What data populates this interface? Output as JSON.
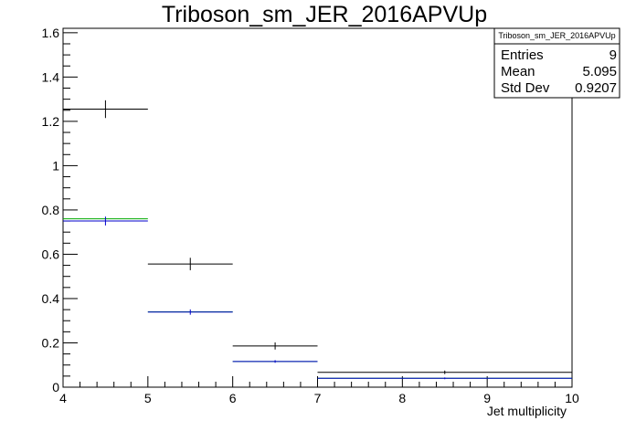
{
  "chart_data": {
    "type": "histogram",
    "title": "Triboson_sm_JER_2016APVUp",
    "xlabel": "Jet multiplicity",
    "ylabel": "",
    "xlim": [
      4,
      10
    ],
    "ylim": [
      0,
      1.62
    ],
    "x_ticks": [
      "4",
      "5",
      "6",
      "7",
      "8",
      "9",
      "10"
    ],
    "y_ticks": [
      "0",
      "0.2",
      "0.4",
      "0.6",
      "0.8",
      "1",
      "1.2",
      "1.4",
      "1.6"
    ],
    "stats_box": {
      "title": "Triboson_sm_JER_2016APVUp",
      "rows": [
        {
          "label": "Entries",
          "value": "9"
        },
        {
          "label": "Mean",
          "value": "5.095"
        },
        {
          "label": "Std Dev",
          "value": "0.9207"
        }
      ]
    },
    "series": [
      {
        "color": "#000000",
        "bins": [
          {
            "xlow": 4,
            "xhigh": 5,
            "y": 1.255,
            "err": 0.04
          },
          {
            "xlow": 5,
            "xhigh": 6,
            "y": 0.556,
            "err": 0.028
          },
          {
            "xlow": 6,
            "xhigh": 7,
            "y": 0.186,
            "err": 0.016
          },
          {
            "xlow": 7,
            "xhigh": 10,
            "y": 0.067,
            "err": 0.008
          }
        ]
      },
      {
        "color": "#00aa00",
        "bins": [
          {
            "xlow": 4,
            "xhigh": 5,
            "y": 0.76,
            "err": 0
          },
          {
            "xlow": 5,
            "xhigh": 6,
            "y": 0.34,
            "err": 0
          },
          {
            "xlow": 6,
            "xhigh": 7,
            "y": 0.116,
            "err": 0
          },
          {
            "xlow": 7,
            "xhigh": 10,
            "y": 0.04,
            "err": 0
          }
        ]
      },
      {
        "color": "#0000cc",
        "bins": [
          {
            "xlow": 4,
            "xhigh": 5,
            "y": 0.75,
            "err": 0.02
          },
          {
            "xlow": 5,
            "xhigh": 6,
            "y": 0.339,
            "err": 0.012
          },
          {
            "xlow": 6,
            "xhigh": 7,
            "y": 0.116,
            "err": 0.006
          },
          {
            "xlow": 7,
            "xhigh": 10,
            "y": 0.04,
            "err": 0.004
          }
        ]
      }
    ]
  }
}
